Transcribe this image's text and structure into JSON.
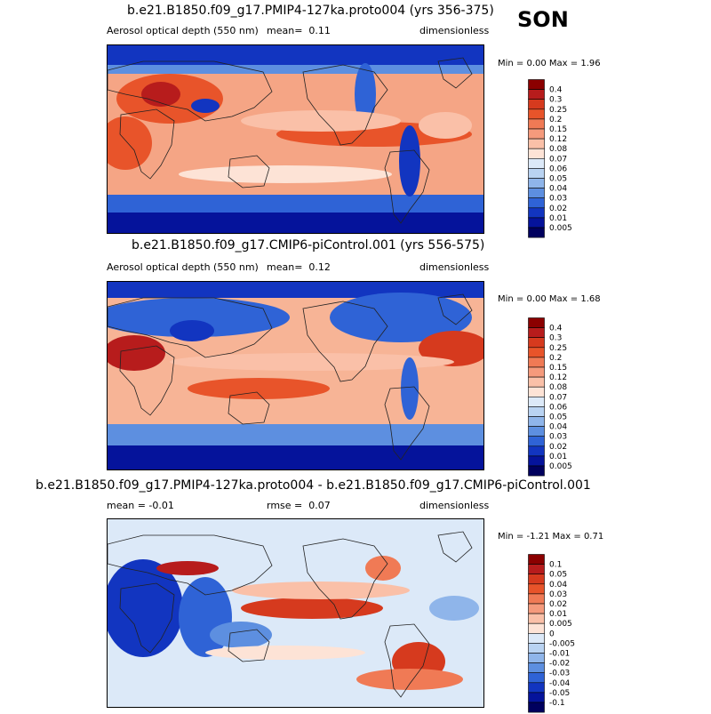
{
  "season": "SON",
  "panels": [
    {
      "title": "b.e21.B1850.f09_g17.PMIP4-127ka.proto004 (yrs 356-375)",
      "left_label": "Aerosol optical depth (550 nm)",
      "stat_label": "mean=",
      "stat_value": "0.11",
      "units": "dimensionless",
      "minmax": "Min =  0.00 Max =  1.96",
      "colorbar_labels": [
        "0.4",
        "0.3",
        "0.25",
        "0.2",
        "0.15",
        "0.12",
        "0.08",
        "0.07",
        "0.06",
        "0.05",
        "0.04",
        "0.03",
        "0.02",
        "0.01",
        "0.005"
      ]
    },
    {
      "title": "b.e21.B1850.f09_g17.CMIP6-piControl.001 (yrs 556-575)",
      "left_label": "Aerosol optical depth (550 nm)",
      "stat_label": "mean=",
      "stat_value": "0.12",
      "units": "dimensionless",
      "minmax": "Min =  0.00 Max =  1.68",
      "colorbar_labels": [
        "0.4",
        "0.3",
        "0.25",
        "0.2",
        "0.15",
        "0.12",
        "0.08",
        "0.07",
        "0.06",
        "0.05",
        "0.04",
        "0.03",
        "0.02",
        "0.01",
        "0.005"
      ]
    },
    {
      "title": "b.e21.B1850.f09_g17.PMIP4-127ka.proto004 - b.e21.B1850.f09_g17.CMIP6-piControl.001",
      "left_label": "mean =  -0.01",
      "stat_label": "rmse =",
      "stat_value": "0.07",
      "units": "dimensionless",
      "minmax": "Min =  -1.21 Max =  0.71",
      "colorbar_labels": [
        "0.1",
        "0.05",
        "0.04",
        "0.03",
        "0.02",
        "0.01",
        "0.005",
        "0",
        "-0.005",
        "-0.01",
        "-0.02",
        "-0.03",
        "-0.04",
        "-0.05",
        "-0.1"
      ]
    }
  ],
  "colors": {
    "colorbar": [
      "#8b0000",
      "#b71c1c",
      "#d63a1e",
      "#e8542a",
      "#f07a55",
      "#f59a7c",
      "#fac0a8",
      "#fde3d6",
      "#dce9f8",
      "#b9d3f2",
      "#8fb5ea",
      "#5d8fe0",
      "#2f63d6",
      "#1235c0",
      "#05139b",
      "#00005e"
    ],
    "land_outline": "#222222"
  },
  "chart_data": [
    {
      "type": "heatmap",
      "title": "b.e21.B1850.f09_g17.PMIP4-127ka.proto004 (yrs 356-375)",
      "variable": "Aerosol optical depth (550 nm)",
      "units": "dimensionless",
      "mean": 0.11,
      "min": 0.0,
      "max": 1.96,
      "levels": [
        0.005,
        0.01,
        0.02,
        0.03,
        0.04,
        0.05,
        0.06,
        0.07,
        0.08,
        0.12,
        0.15,
        0.2,
        0.25,
        0.3,
        0.4
      ]
    },
    {
      "type": "heatmap",
      "title": "b.e21.B1850.f09_g17.CMIP6-piControl.001 (yrs 556-575)",
      "variable": "Aerosol optical depth (550 nm)",
      "units": "dimensionless",
      "mean": 0.12,
      "min": 0.0,
      "max": 1.68,
      "levels": [
        0.005,
        0.01,
        0.02,
        0.03,
        0.04,
        0.05,
        0.06,
        0.07,
        0.08,
        0.12,
        0.15,
        0.2,
        0.25,
        0.3,
        0.4
      ]
    },
    {
      "type": "heatmap",
      "title": "b.e21.B1850.f09_g17.PMIP4-127ka.proto004 - b.e21.B1850.f09_g17.CMIP6-piControl.001",
      "units": "dimensionless",
      "mean": -0.01,
      "rmse": 0.07,
      "min": -1.21,
      "max": 0.71,
      "levels": [
        -0.1,
        -0.05,
        -0.04,
        -0.03,
        -0.02,
        -0.01,
        -0.005,
        0,
        0.005,
        0.01,
        0.02,
        0.03,
        0.04,
        0.05,
        0.1
      ]
    }
  ]
}
